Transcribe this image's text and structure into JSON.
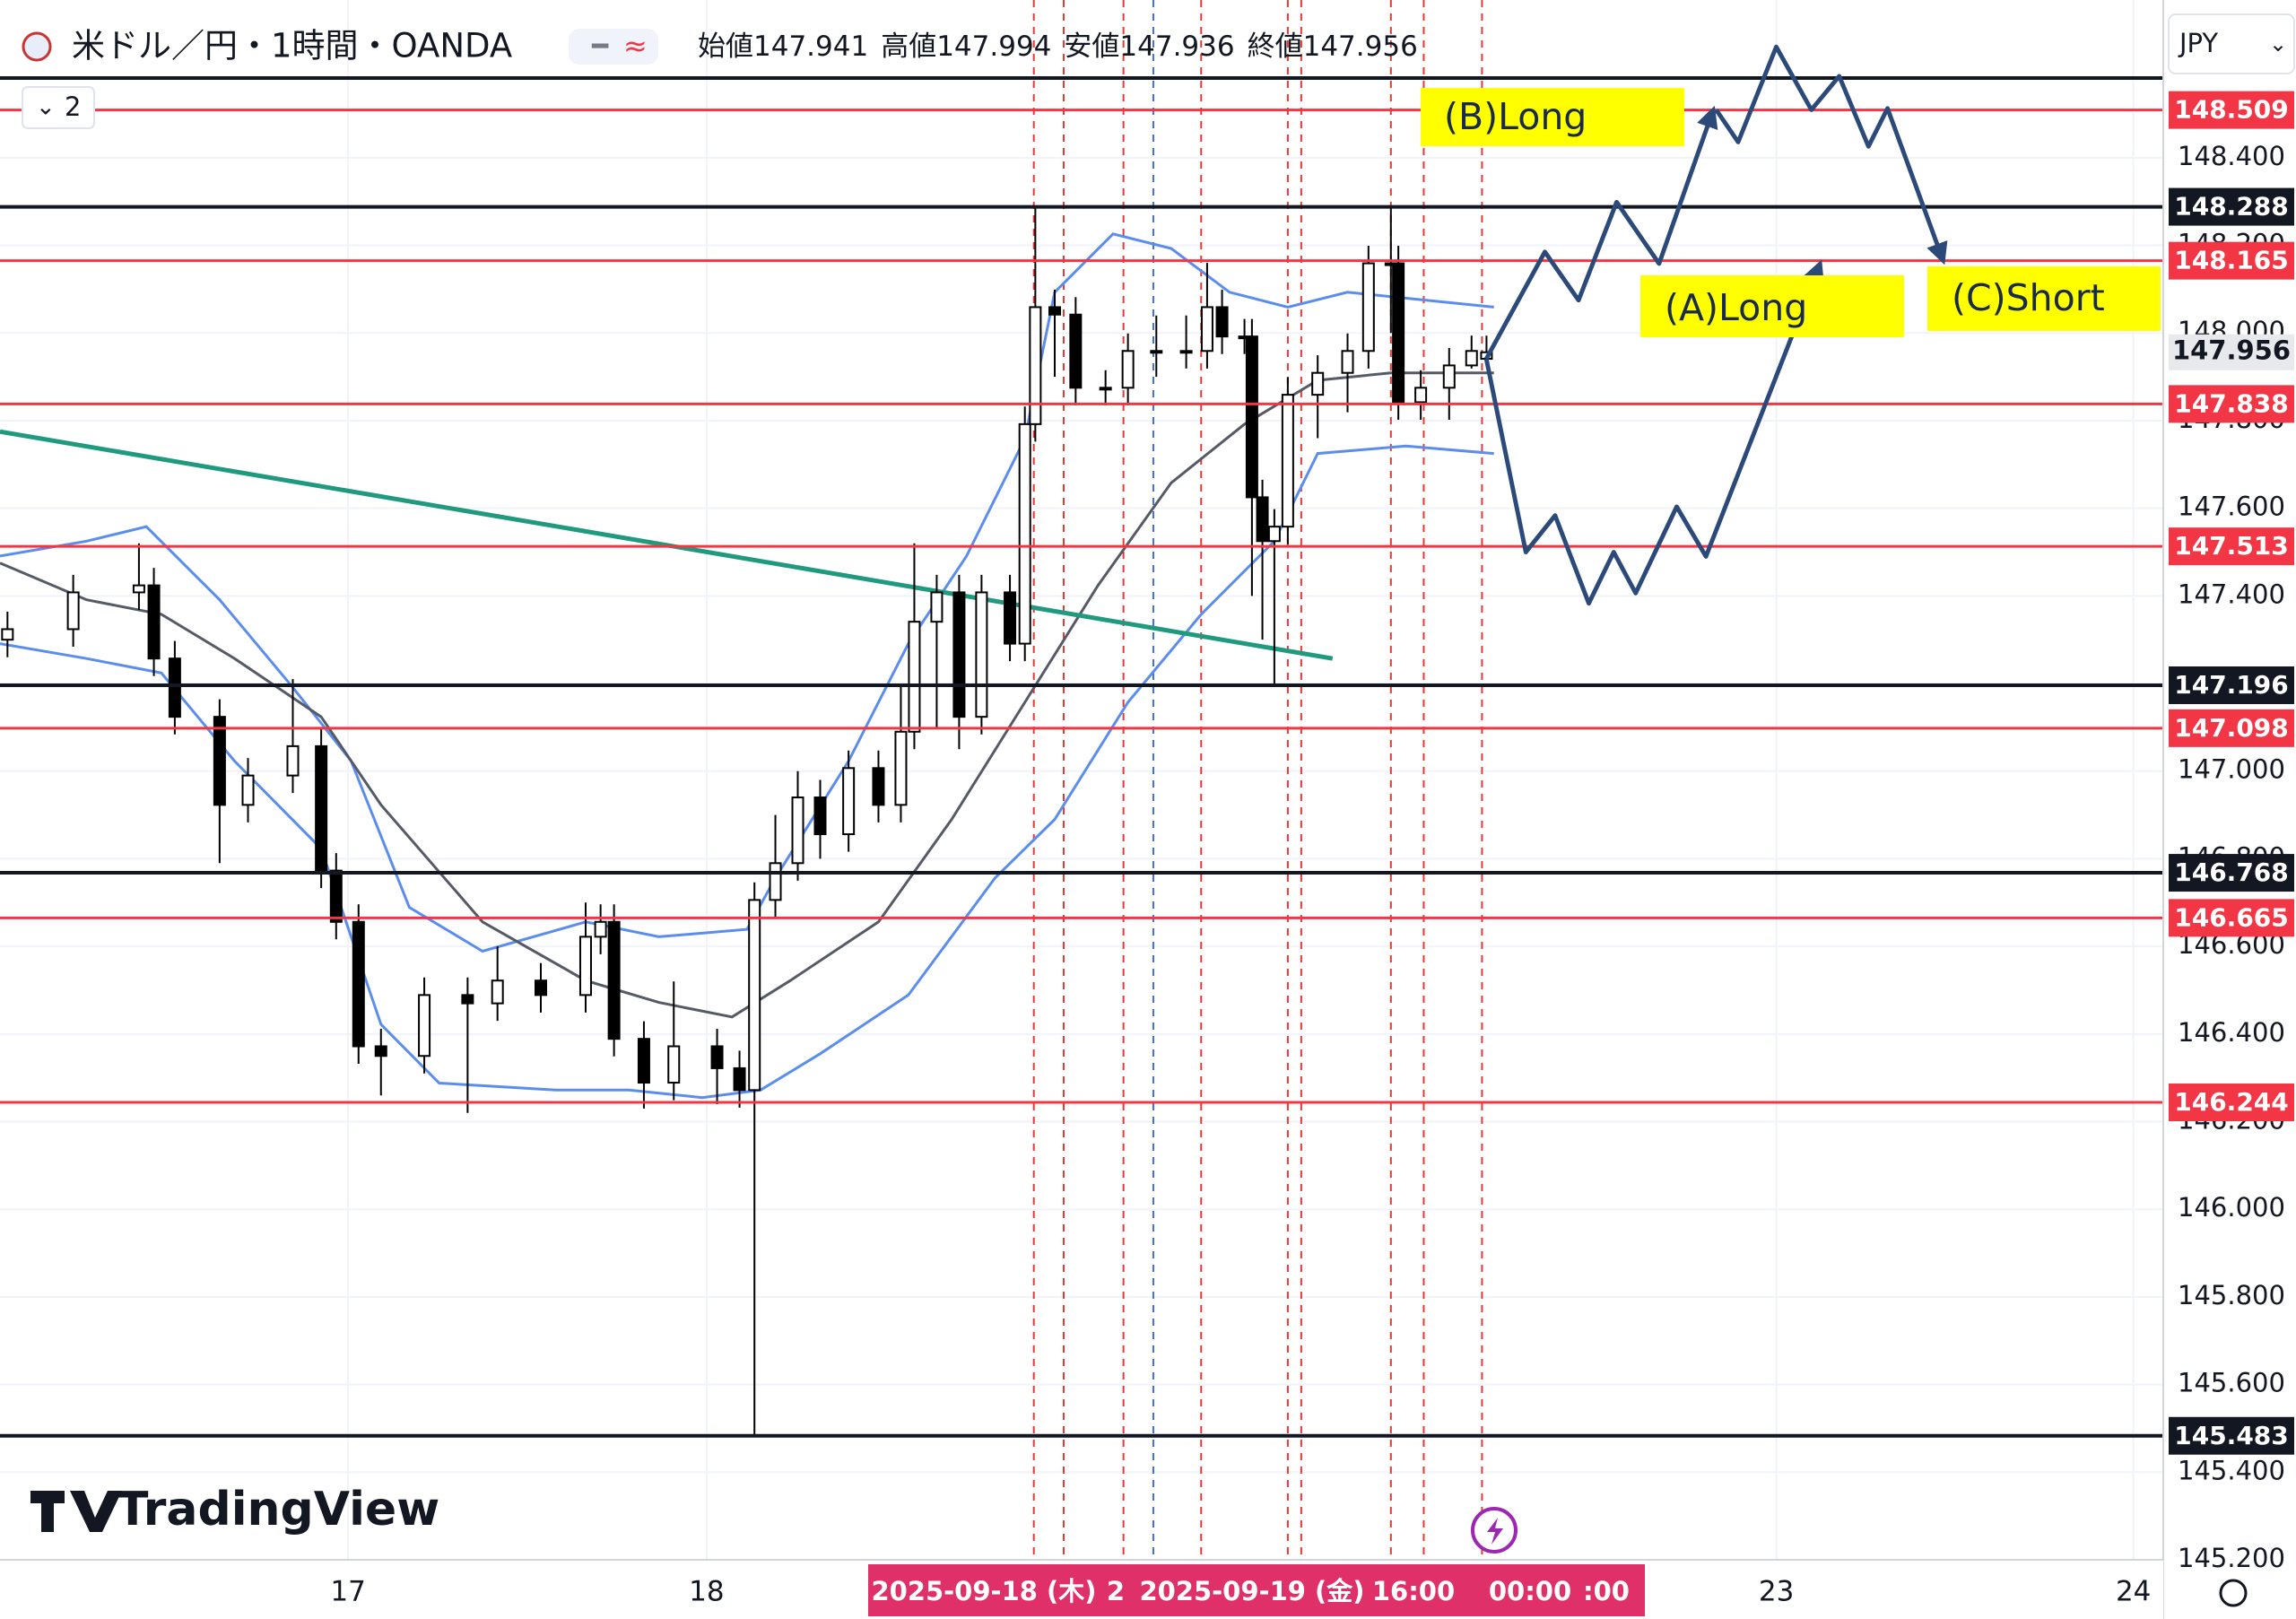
{
  "header": {
    "symbol": "米ドル／円・1時間・OANDA",
    "ohlc_labels": [
      "始値",
      "高値",
      "安値",
      "終値"
    ],
    "indicator_count": "2",
    "currency": "JPY",
    "brand": "TradingView"
  },
  "chart_data": {
    "type": "candlestick",
    "x": [
      -22.8,
      -18.4,
      -14.0,
      -13.0,
      -11.6,
      -8.6,
      -6.7,
      -3.7,
      -1.8,
      -0.8,
      0.7,
      2.2,
      5.1,
      8.0,
      10.0,
      12.9,
      15.9,
      16.9,
      17.8,
      19.8,
      21.8,
      24.7,
      26.2,
      27.2,
      28.6,
      30.1,
      31.6,
      33.5,
      35.5,
      37.0,
      37.9,
      39.4,
      40.9,
      42.4,
      44.3,
      45.3,
      46.0,
      47.3,
      48.7,
      50.7,
      52.2,
      54.1,
      56.1,
      57.5,
      58.5,
      60.0,
      60.5,
      61.2,
      62.0,
      62.9,
      64.9,
      66.9,
      68.3,
      69.8,
      70.3,
      71.8,
      73.7,
      75.2,
      76.2
    ],
    "open": [
      147.3,
      147.324,
      147.408,
      147.424,
      147.257,
      147.124,
      146.923,
      146.99,
      147.057,
      146.773,
      146.656,
      146.372,
      146.35,
      146.489,
      146.47,
      146.522,
      146.489,
      146.622,
      146.656,
      146.389,
      146.289,
      146.372,
      146.322,
      146.272,
      146.706,
      146.79,
      146.94,
      146.856,
      147.007,
      146.923,
      147.09,
      147.341,
      147.408,
      147.124,
      147.408,
      147.291,
      147.792,
      148.059,
      148.042,
      147.875,
      147.875,
      147.959,
      147.959,
      147.959,
      148.059,
      147.992,
      147.992,
      147.625,
      147.525,
      147.558,
      147.859,
      147.909,
      147.959,
      148.159,
      148.159,
      147.842,
      147.875,
      147.926,
      147.941
    ],
    "high": [
      147.364,
      147.448,
      147.52,
      147.464,
      147.297,
      147.164,
      147.03,
      147.21,
      147.097,
      146.813,
      146.696,
      146.412,
      146.529,
      146.529,
      146.6,
      146.562,
      146.7,
      146.696,
      146.696,
      146.429,
      146.52,
      146.412,
      146.362,
      146.746,
      146.9,
      147.0,
      146.98,
      147.047,
      147.047,
      147.2,
      147.52,
      147.448,
      147.448,
      147.448,
      147.448,
      147.832,
      148.288,
      148.099,
      148.082,
      147.915,
      147.999,
      148.04,
      148.04,
      148.16,
      148.099,
      148.032,
      148.032,
      147.665,
      147.598,
      147.899,
      147.949,
      147.999,
      148.199,
      148.288,
      148.199,
      147.915,
      147.966,
      147.994,
      147.994
    ],
    "low": [
      147.26,
      147.284,
      147.368,
      147.217,
      147.084,
      146.79,
      146.883,
      146.95,
      146.733,
      146.616,
      146.332,
      146.26,
      146.31,
      146.22,
      146.43,
      146.449,
      146.449,
      146.582,
      146.349,
      146.23,
      146.249,
      146.24,
      146.232,
      145.483,
      146.666,
      146.75,
      146.8,
      146.816,
      146.883,
      146.883,
      147.05,
      147.1,
      147.05,
      147.084,
      147.251,
      147.251,
      147.752,
      147.9,
      147.835,
      147.835,
      147.835,
      147.9,
      147.919,
      147.919,
      147.952,
      147.952,
      147.4,
      147.3,
      147.2,
      147.518,
      147.76,
      147.819,
      147.919,
      148.0,
      147.802,
      147.802,
      147.802,
      147.919,
      147.936
    ],
    "close": [
      147.324,
      147.408,
      147.424,
      147.257,
      147.124,
      146.923,
      146.99,
      147.057,
      146.773,
      146.656,
      146.372,
      146.35,
      146.489,
      146.47,
      146.522,
      146.489,
      146.622,
      146.656,
      146.389,
      146.289,
      146.372,
      146.322,
      146.272,
      146.706,
      146.79,
      146.94,
      146.856,
      147.007,
      146.923,
      147.09,
      147.341,
      147.408,
      147.124,
      147.408,
      147.291,
      147.792,
      148.059,
      148.042,
      147.875,
      147.875,
      147.959,
      147.959,
      147.959,
      148.059,
      147.992,
      147.992,
      147.625,
      147.525,
      147.558,
      147.859,
      147.909,
      147.959,
      148.159,
      148.159,
      147.842,
      147.875,
      147.926,
      147.959,
      147.956
    ],
    "up_color": "#ffffff",
    "down_color": "#000000",
    "xlim": [
      -23.3,
      121.5
    ],
    "ylim": [
      145.2,
      148.76
    ],
    "xticks": [
      {
        "value": 0,
        "label": "17"
      },
      {
        "value": 24,
        "label": "18"
      },
      {
        "value": 95.6,
        "label": "23"
      },
      {
        "value": 119.5,
        "label": "24"
      }
    ],
    "yticks": [
      {
        "value": 145.2,
        "label": "145.200"
      },
      {
        "value": 145.4,
        "label": "145.400"
      },
      {
        "value": 145.6,
        "label": "145.600"
      },
      {
        "value": 145.8,
        "label": "145.800"
      },
      {
        "value": 146.0,
        "label": "146.000"
      },
      {
        "value": 146.2,
        "label": "146.200"
      },
      {
        "value": 146.4,
        "label": "146.400"
      },
      {
        "value": 146.6,
        "label": "146.600"
      },
      {
        "value": 146.8,
        "label": "146.800"
      },
      {
        "value": 147.0,
        "label": "147.000"
      },
      {
        "value": 147.2,
        "label": "147.200"
      },
      {
        "value": 147.4,
        "label": "147.400"
      },
      {
        "value": 147.6,
        "label": "147.600"
      },
      {
        "value": 147.8,
        "label": "147.800"
      },
      {
        "value": 148.0,
        "label": "148.000"
      },
      {
        "value": 148.2,
        "label": "148.200"
      },
      {
        "value": 148.4,
        "label": "148.400"
      }
    ],
    "grid": true,
    "bands": [
      {
        "color": "#5b8def",
        "x": [
          -23.3,
          -17.5,
          -13.5,
          -8.6,
          -3.7,
          0.2,
          4.1,
          9.0,
          15.9,
          20.8,
          26.7,
          28.6,
          33.5,
          37.5,
          41.4,
          45.3,
          47.3,
          51.2,
          55.1,
          59.0,
          62.9,
          66.9,
          76.7
        ],
        "values": [
          147.491,
          147.525,
          147.558,
          147.391,
          147.191,
          147.023,
          146.689,
          146.589,
          146.656,
          146.622,
          146.639,
          146.756,
          147.023,
          147.291,
          147.491,
          147.759,
          148.093,
          148.226,
          148.193,
          148.093,
          148.059,
          148.093,
          148.059
        ]
      },
      {
        "color": "#555a66",
        "x": [
          -23.3,
          -17.5,
          -12.5,
          -7.6,
          -1.8,
          2.2,
          9.0,
          15.9,
          20.8,
          25.7,
          29.6,
          35.5,
          40.4,
          45.3,
          50.2,
          55.1,
          60.0,
          64.9,
          69.8,
          76.7
        ],
        "values": [
          147.475,
          147.391,
          147.358,
          147.257,
          147.124,
          146.923,
          146.656,
          146.522,
          146.472,
          146.439,
          146.522,
          146.656,
          146.89,
          147.157,
          147.424,
          147.658,
          147.792,
          147.892,
          147.909,
          147.909
        ]
      },
      {
        "color": "#5b8def",
        "x": [
          -23.3,
          -17.5,
          -12.5,
          -7.6,
          -1.8,
          2.2,
          6.1,
          13.9,
          18.8,
          23.7,
          27.6,
          31.6,
          37.5,
          43.3,
          47.3,
          52.2,
          57.1,
          62.0,
          64.9,
          70.8,
          76.7
        ],
        "values": [
          147.291,
          147.257,
          147.224,
          147.023,
          146.823,
          146.422,
          146.288,
          146.272,
          146.272,
          146.255,
          146.272,
          146.355,
          146.489,
          146.756,
          146.89,
          147.157,
          147.358,
          147.525,
          147.725,
          147.742,
          147.725
        ]
      }
    ],
    "trendline": {
      "color": "#1f9a7f",
      "x": [
        -23.3,
        65.9
      ],
      "values": [
        147.775,
        147.257
      ]
    },
    "vertical_lines": [
      {
        "color": "#e53935",
        "x": [
          45.9,
          47.9,
          51.9,
          57.1,
          62.9,
          63.8,
          69.8,
          72.0,
          75.9
        ]
      },
      {
        "color": "#3f6fd8",
        "x": [
          53.9
        ]
      }
    ],
    "levels": [
      {
        "value": 148.509,
        "color": "#f23645"
      },
      {
        "value": 148.288,
        "color": "#131722"
      },
      {
        "value": 148.165,
        "color": "#f23645"
      },
      {
        "value": 147.838,
        "color": "#f23645"
      },
      {
        "value": 147.513,
        "color": "#f23645"
      },
      {
        "value": 147.196,
        "color": "#131722"
      },
      {
        "value": 147.098,
        "color": "#f23645"
      },
      {
        "value": 146.768,
        "color": "#131722"
      },
      {
        "value": 146.665,
        "color": "#f23645"
      },
      {
        "value": 146.244,
        "color": "#f23645"
      },
      {
        "value": 145.483,
        "color": "#131722"
      }
    ],
    "crosshair_labels": [
      "2025-09-18 (木)",
      "2",
      "2025-09-19 (金)",
      "16:00",
      "00:00",
      ":00"
    ],
    "annotations": [
      "(A)Long",
      "(B)Long",
      "(C)Short"
    ]
  }
}
